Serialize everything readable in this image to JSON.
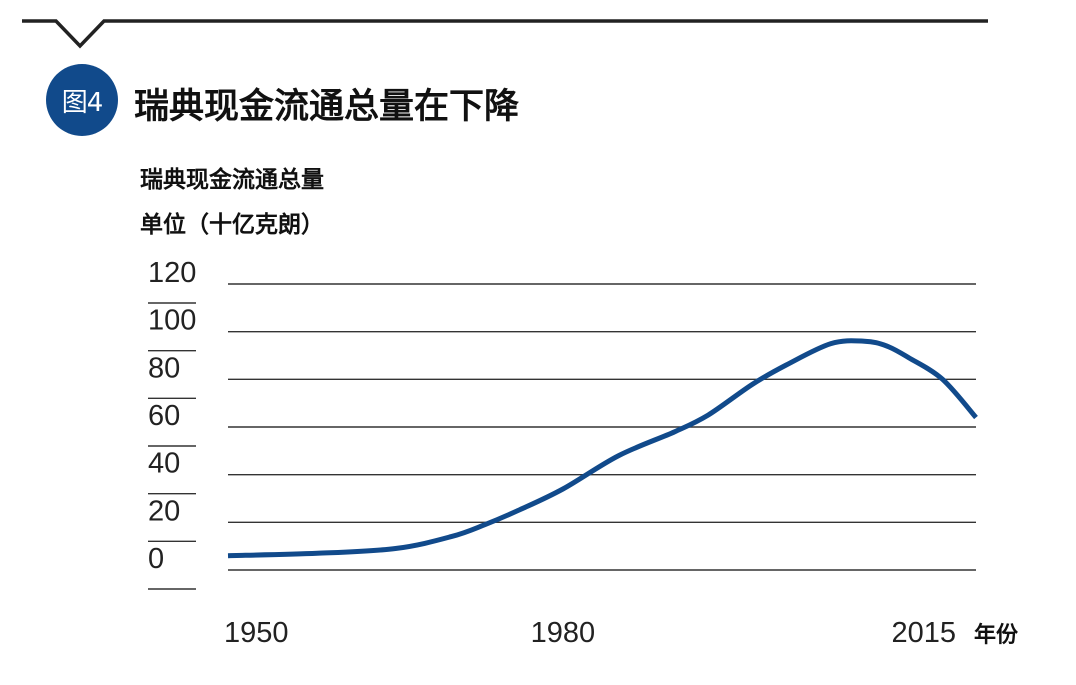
{
  "colors": {
    "accent": "#114a8b",
    "gridline": "#333333",
    "text": "#111111"
  },
  "badge": {
    "label": "图4"
  },
  "header": {
    "title": "瑞典现金流通总量在下降"
  },
  "chart_data": {
    "type": "line",
    "title": "瑞典现金流通总量在下降",
    "ylabel_lines": [
      "瑞典现金流通总量",
      "单位（十亿克朗）"
    ],
    "xlabel": "年份",
    "xlim": [
      1950,
      2017
    ],
    "ylim": [
      0,
      120
    ],
    "yticks": [
      {
        "value": 0,
        "label": "0"
      },
      {
        "value": 20,
        "label": "20"
      },
      {
        "value": 40,
        "label": "40"
      },
      {
        "value": 60,
        "label": "60"
      },
      {
        "value": 80,
        "label": "80"
      },
      {
        "value": 100,
        "label": "100"
      },
      {
        "value": 120,
        "label": "120"
      }
    ],
    "xticks": [
      {
        "value": 1950,
        "label": "1950"
      },
      {
        "value": 1980,
        "label": "1980"
      },
      {
        "value": 2015,
        "label": "2015"
      }
    ],
    "grid": true,
    "legend": "none",
    "series": [
      {
        "color": "#114a8b",
        "x": [
          1950,
          1958,
          1965,
          1970,
          1973,
          1976,
          1980,
          1985,
          1990,
          1993,
          1997,
          2000,
          2004,
          2007,
          2009,
          2011,
          2014,
          2017
        ],
        "y": [
          6,
          7,
          9,
          14,
          19,
          25,
          34,
          48,
          58,
          65,
          78,
          86,
          95,
          96,
          94,
          89,
          80,
          64
        ]
      }
    ]
  }
}
